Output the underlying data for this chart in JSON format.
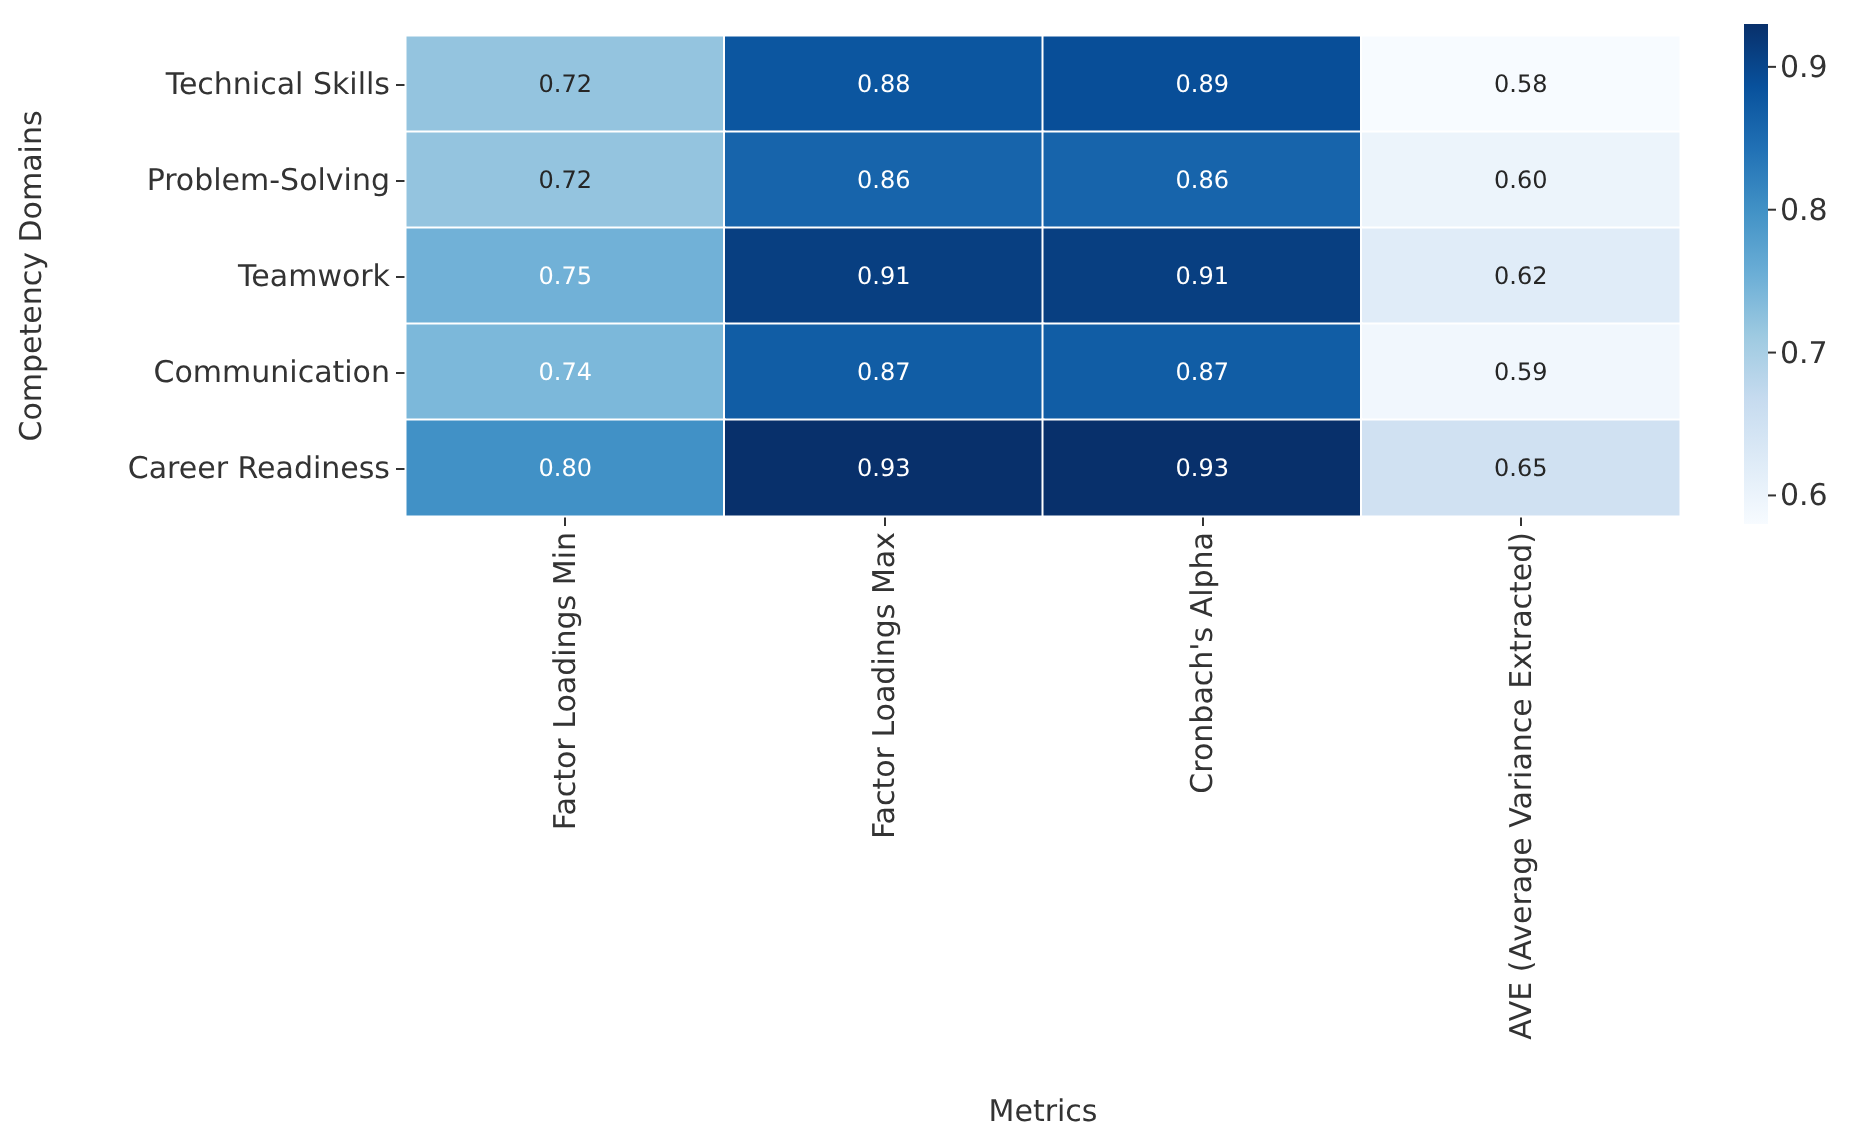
{
  "chart_data": {
    "type": "heatmap",
    "xlabel": "Metrics",
    "ylabel": "Competency Domains",
    "categories": [
      "Factor Loadings Min",
      "Factor Loadings Max",
      "Cronbach's Alpha",
      "AVE (Average Variance Extracted)"
    ],
    "y_categories": [
      "Technical Skills",
      "Problem-Solving",
      "Teamwork",
      "Communication",
      "Career Readiness"
    ],
    "cells": [
      [
        0.72,
        0.88,
        0.89,
        0.58
      ],
      [
        0.72,
        0.86,
        0.86,
        0.6
      ],
      [
        0.75,
        0.91,
        0.91,
        0.62
      ],
      [
        0.74,
        0.87,
        0.87,
        0.59
      ],
      [
        0.8,
        0.93,
        0.93,
        0.65
      ]
    ],
    "cell_labels": [
      [
        "0.72",
        "0.88",
        "0.89",
        "0.58"
      ],
      [
        "0.72",
        "0.86",
        "0.86",
        "0.60"
      ],
      [
        "0.75",
        "0.91",
        "0.91",
        "0.62"
      ],
      [
        "0.74",
        "0.87",
        "0.87",
        "0.59"
      ],
      [
        "0.80",
        "0.93",
        "0.93",
        "0.65"
      ]
    ],
    "clim": [
      0.58,
      0.93
    ],
    "cticks": [
      0.6,
      0.7,
      0.8,
      0.9
    ],
    "data_labels": true
  }
}
